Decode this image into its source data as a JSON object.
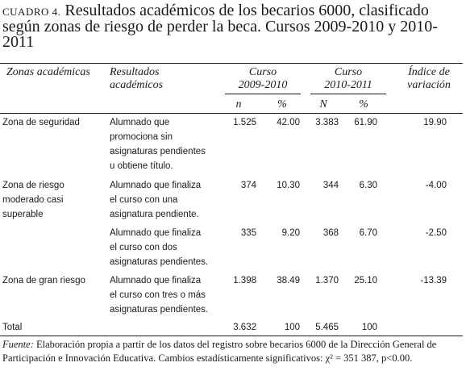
{
  "caption": {
    "label": "CUADRO 4.",
    "title": "Resultados académicos de los becarios 6000, clasificado según zonas de riesgo de perder la beca. Cursos 2009-2010 y 2010-2011"
  },
  "headers": {
    "zonas": "Zonas académicas",
    "resultados_l1": "Resultados",
    "resultados_l2": "académicos",
    "curso1_l1": "Curso",
    "curso1_l2": "2009-2010",
    "curso2_l1": "Curso",
    "curso2_l2": "2010-2011",
    "indice_l1": "Índice de",
    "indice_l2": "variación",
    "n1": "n",
    "pct1": "%",
    "n2": "N",
    "pct2": "%"
  },
  "rows": [
    {
      "zona": [
        "Zona de seguridad"
      ],
      "resultado": [
        "Alumnado que",
        "promociona sin",
        "asignaturas pendientes",
        "u obtiene título."
      ],
      "n1": "1.525",
      "pct1": "42.00",
      "n2": "3.383",
      "pct2": "61.90",
      "indice": "19.90"
    },
    {
      "zona": [
        "Zona de riesgo",
        "moderado casi",
        "superable"
      ],
      "resultado": [
        "Alumnado que finaliza",
        "el curso con una",
        "asignatura pendiente."
      ],
      "n1": "374",
      "pct1": "10.30",
      "n2": "344",
      "pct2": "6.30",
      "indice": "-4.00"
    },
    {
      "zona": [],
      "resultado": [
        "Alumnado que finaliza",
        "el curso con dos",
        "asignaturas pendientes."
      ],
      "n1": "335",
      "pct1": "9.20",
      "n2": "368",
      "pct2": "6.70",
      "indice": "-2.50"
    },
    {
      "zona": [
        "Zona de gran riesgo"
      ],
      "resultado": [
        "Alumnado que finaliza",
        "el curso con tres o más",
        "asignaturas pendientes."
      ],
      "n1": "1.398",
      "pct1": "38.49",
      "n2": "1.370",
      "pct2": "25.10",
      "indice": "-13.39"
    }
  ],
  "total": {
    "label": "Total",
    "n1": "3.632",
    "pct1": "100",
    "n2": "5.465",
    "pct2": "100"
  },
  "footnote": {
    "label": "Fuente:",
    "text1": " Elaboración propia a partir de los datos del registro sobre becarios 6000 de la Dirección General de",
    "text2": "Participación e Innovación Educativa. Cambios estadísticamente significativos: χ² = 351 387, p<0.00."
  }
}
